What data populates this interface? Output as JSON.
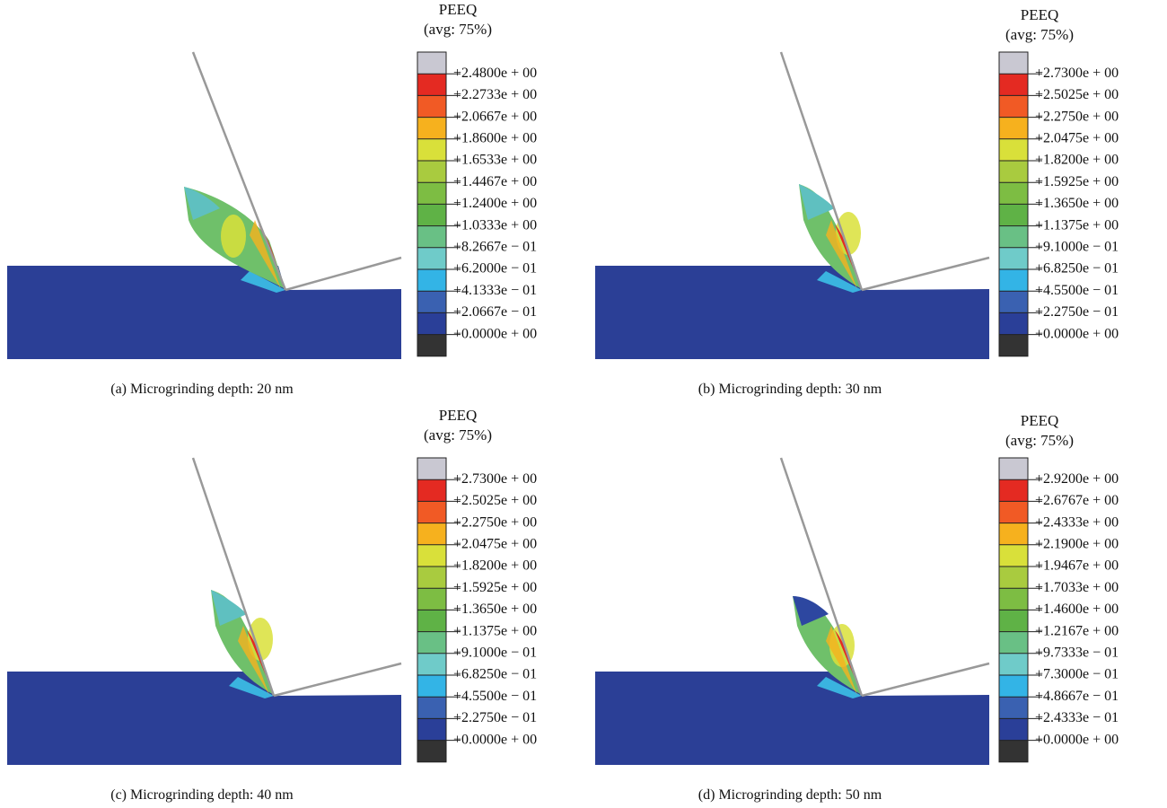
{
  "panels": [
    {
      "title": "PEEQ",
      "subtitle": "(avg: 75%)",
      "legend": [
        "+2.4800e + 00",
        "+2.2733e + 00",
        "+2.0667e + 00",
        "+1.8600e + 00",
        "+1.6533e + 00",
        "+1.4467e + 00",
        "+1.2400e + 00",
        "+1.0333e + 00",
        "+8.2667e − 01",
        "+6.2000e − 01",
        "+4.1333e − 01",
        "+2.0667e − 01",
        "+0.0000e + 00"
      ],
      "caption": "(a)  Microgrinding depth: 20 nm"
    },
    {
      "title": "PEEQ",
      "subtitle": "(avg: 75%)",
      "legend": [
        "+2.7300e + 00",
        "+2.5025e + 00",
        "+2.2750e + 00",
        "+2.0475e + 00",
        "+1.8200e + 00",
        "+1.5925e + 00",
        "+1.3650e + 00",
        "+1.1375e + 00",
        "+9.1000e − 01",
        "+6.8250e − 01",
        "+4.5500e − 01",
        "+2.2750e − 01",
        "+0.0000e + 00"
      ],
      "caption": "(b)  Microgrinding depth: 30 nm"
    },
    {
      "title": "PEEQ",
      "subtitle": "(avg: 75%)",
      "legend": [
        "+2.7300e + 00",
        "+2.5025e + 00",
        "+2.2750e + 00",
        "+2.0475e + 00",
        "+1.8200e + 00",
        "+1.5925e + 00",
        "+1.3650e + 00",
        "+1.1375e + 00",
        "+9.1000e − 01",
        "+6.8250e − 01",
        "+4.5500e − 01",
        "+2.2750e − 01",
        "+0.0000e + 00"
      ],
      "caption": "(c)  Microgrinding depth: 40 nm"
    },
    {
      "title": "PEEQ",
      "subtitle": "(avg: 75%)",
      "legend": [
        "+2.9200e + 00",
        "+2.6767e + 00",
        "+2.4333e + 00",
        "+2.1900e + 00",
        "+1.9467e + 00",
        "+1.7033e + 00",
        "+1.4600e + 00",
        "+1.2167e + 00",
        "+9.7333e − 01",
        "+7.3000e − 01",
        "+4.8667e − 01",
        "+2.4333e − 01",
        "+0.0000e + 00"
      ],
      "caption": "(d)  Microgrinding depth: 50 nm"
    }
  ]
}
